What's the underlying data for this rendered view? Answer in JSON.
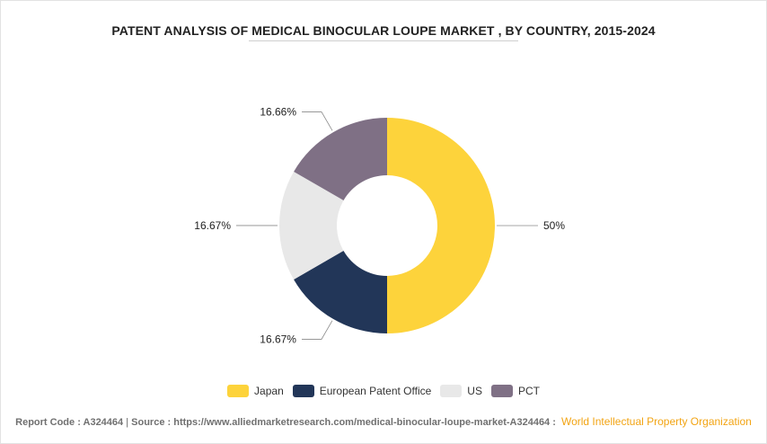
{
  "chart_data": {
    "type": "pie",
    "title": "PATENT ANALYSIS OF MEDICAL BINOCULAR LOUPE MARKET , BY COUNTRY, 2015-2024",
    "categories": [
      "Japan",
      "European Patent Office",
      "US",
      "PCT"
    ],
    "values": [
      50,
      16.67,
      16.67,
      16.66
    ],
    "value_labels": [
      "50%",
      "16.67%",
      "16.67%",
      "16.66%"
    ],
    "colors": [
      "#fdd33b",
      "#223658",
      "#e8e8e8",
      "#7f7085"
    ],
    "donut": true,
    "legend_position": "bottom"
  },
  "footer": {
    "report_code": "Report Code : A324464",
    "separator": "|",
    "source": "Source : https://www.alliedmarketresearch.com/medical-binocular-loupe-market-A324464 :",
    "credit": "World Intellectual Property Organization"
  }
}
